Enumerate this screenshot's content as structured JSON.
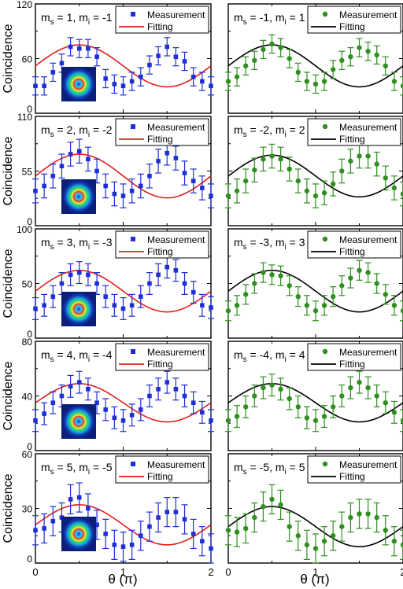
{
  "figure": {
    "ylabel": "Coincidence",
    "xlabel": "θ (π)",
    "legend_measurement": "Measurement",
    "legend_fitting": "Fitting",
    "x_ticks": [
      "0",
      "1",
      "2"
    ],
    "colors": {
      "left_marker": "#1f2fd6",
      "left_errorbar": "#1f2fd6",
      "left_fit": "#e0201b",
      "right_marker": "#2f8f1f",
      "right_errorbar": "#2f8f1f",
      "right_fit": "#000000"
    },
    "inset_beam": "ring-mode intensity image (blue background, green/red/yellow concentric rings)"
  },
  "chart_data": [
    {
      "type": "scatter",
      "panel": "left",
      "row": 1,
      "label_ms": "m",
      "label_text_a": "s",
      "label_eq_a": " = 1, m",
      "label_text_b": "i",
      "label_eq_b": " = -1",
      "ylim": [
        0,
        120
      ],
      "yticks": [
        "0",
        "60",
        "120"
      ],
      "xlim": [
        0,
        2
      ],
      "x": [
        0,
        0.1,
        0.2,
        0.3,
        0.4,
        0.5,
        0.6,
        0.7,
        0.8,
        0.9,
        1.0,
        1.1,
        1.2,
        1.3,
        1.4,
        1.5,
        1.6,
        1.7,
        1.8,
        1.9,
        2.0
      ],
      "y": [
        30,
        30,
        45,
        55,
        73,
        71,
        71,
        62,
        38,
        32,
        30,
        35,
        40,
        53,
        63,
        73,
        62,
        57,
        40,
        35,
        30
      ],
      "err": 10,
      "fit": {
        "offset": 52,
        "amp": 23,
        "phase": 0.5
      }
    },
    {
      "type": "scatter",
      "panel": "right",
      "row": 1,
      "label_ms": "m",
      "label_text_a": "s",
      "label_eq_a": " = -1, m",
      "label_text_b": "i",
      "label_eq_b": " = 1",
      "ylim": [
        0,
        120
      ],
      "yticks": [],
      "xlim": [
        0,
        2
      ],
      "x": [
        0,
        0.1,
        0.2,
        0.3,
        0.4,
        0.5,
        0.6,
        0.7,
        0.8,
        0.9,
        1.0,
        1.1,
        1.2,
        1.3,
        1.4,
        1.5,
        1.6,
        1.7,
        1.8,
        1.9,
        2.0
      ],
      "y": [
        35,
        40,
        52,
        58,
        70,
        76,
        72,
        60,
        45,
        35,
        32,
        35,
        48,
        58,
        62,
        72,
        68,
        64,
        52,
        35,
        30
      ],
      "err": 10,
      "fit": {
        "offset": 52,
        "amp": 23,
        "phase": 0.5
      }
    },
    {
      "type": "scatter",
      "panel": "left",
      "row": 2,
      "label_ms": "m",
      "label_text_a": "s",
      "label_eq_a": " = 2, m",
      "label_text_b": "i",
      "label_eq_b": " = -2",
      "ylim": [
        0,
        110
      ],
      "yticks": [
        "0",
        "55",
        "110"
      ],
      "xlim": [
        0,
        2
      ],
      "x": [
        0,
        0.1,
        0.2,
        0.3,
        0.4,
        0.5,
        0.6,
        0.7,
        0.8,
        0.9,
        1.0,
        1.1,
        1.2,
        1.3,
        1.4,
        1.5,
        1.6,
        1.7,
        1.8,
        1.9,
        2.0
      ],
      "y": [
        35,
        40,
        50,
        60,
        72,
        75,
        67,
        55,
        40,
        32,
        30,
        35,
        40,
        50,
        65,
        73,
        68,
        53,
        45,
        38,
        30
      ],
      "err": 12,
      "fit": {
        "offset": 50,
        "amp": 22,
        "phase": 0.5
      }
    },
    {
      "type": "scatter",
      "panel": "right",
      "row": 2,
      "label_ms": "m",
      "label_text_a": "s",
      "label_eq_a": " = -2, m",
      "label_text_b": "i",
      "label_eq_b": " = 2",
      "ylim": [
        0,
        110
      ],
      "yticks": [],
      "xlim": [
        0,
        2
      ],
      "x": [
        0,
        0.1,
        0.2,
        0.3,
        0.4,
        0.5,
        0.6,
        0.7,
        0.8,
        0.9,
        1.0,
        1.1,
        1.2,
        1.3,
        1.4,
        1.5,
        1.6,
        1.7,
        1.8,
        1.9,
        2.0
      ],
      "y": [
        30,
        35,
        45,
        56,
        67,
        70,
        67,
        57,
        45,
        35,
        30,
        33,
        42,
        55,
        65,
        70,
        70,
        62,
        48,
        38,
        32
      ],
      "err": 12,
      "fit": {
        "offset": 50,
        "amp": 21,
        "phase": 0.5
      }
    },
    {
      "type": "scatter",
      "panel": "left",
      "row": 3,
      "label_ms": "m",
      "label_text_a": "s",
      "label_eq_a": " = 3, m",
      "label_text_b": "i",
      "label_eq_b": " = -3",
      "ylim": [
        0,
        100
      ],
      "yticks": [
        "0",
        "50",
        "100"
      ],
      "xlim": [
        0,
        2
      ],
      "x": [
        0,
        0.1,
        0.2,
        0.3,
        0.4,
        0.5,
        0.6,
        0.7,
        0.8,
        0.9,
        1.0,
        1.1,
        1.2,
        1.3,
        1.4,
        1.5,
        1.6,
        1.7,
        1.8,
        1.9,
        2.0
      ],
      "y": [
        27,
        30,
        38,
        50,
        58,
        60,
        58,
        50,
        38,
        30,
        27,
        30,
        38,
        50,
        58,
        65,
        62,
        50,
        42,
        30,
        28
      ],
      "err": 10,
      "fit": {
        "offset": 43,
        "amp": 19,
        "phase": 0.5
      }
    },
    {
      "type": "scatter",
      "panel": "right",
      "row": 3,
      "label_ms": "m",
      "label_text_a": "s",
      "label_eq_a": " = -3, m",
      "label_text_b": "i",
      "label_eq_b": " = 3",
      "ylim": [
        0,
        100
      ],
      "yticks": [],
      "xlim": [
        0,
        2
      ],
      "x": [
        0,
        0.1,
        0.2,
        0.3,
        0.4,
        0.5,
        0.6,
        0.7,
        0.8,
        0.9,
        1.0,
        1.1,
        1.2,
        1.3,
        1.4,
        1.5,
        1.6,
        1.7,
        1.8,
        1.9,
        2.0
      ],
      "y": [
        25,
        30,
        40,
        50,
        60,
        58,
        57,
        48,
        38,
        30,
        25,
        30,
        38,
        48,
        55,
        62,
        60,
        50,
        40,
        30,
        25
      ],
      "err": 9,
      "fit": {
        "offset": 43,
        "amp": 19,
        "phase": 0.5
      }
    },
    {
      "type": "scatter",
      "panel": "left",
      "row": 4,
      "label_ms": "m",
      "label_text_a": "s",
      "label_eq_a": " = 4, m",
      "label_text_b": "i",
      "label_eq_b": " = -4",
      "ylim": [
        0,
        80
      ],
      "yticks": [
        "0",
        "40",
        "80"
      ],
      "xlim": [
        0,
        2
      ],
      "x": [
        0,
        0.1,
        0.2,
        0.3,
        0.4,
        0.5,
        0.6,
        0.7,
        0.8,
        0.9,
        1.0,
        1.1,
        1.2,
        1.3,
        1.4,
        1.5,
        1.6,
        1.7,
        1.8,
        1.9,
        2.0
      ],
      "y": [
        22,
        27,
        35,
        40,
        47,
        50,
        45,
        35,
        30,
        24,
        22,
        26,
        30,
        40,
        45,
        50,
        45,
        40,
        35,
        28,
        22
      ],
      "err": 8,
      "fit": {
        "offset": 35,
        "amp": 14,
        "phase": 0.5
      }
    },
    {
      "type": "scatter",
      "panel": "right",
      "row": 4,
      "label_ms": "m",
      "label_text_a": "s",
      "label_eq_a": " = -4, m",
      "label_text_b": "i",
      "label_eq_b": " = 4",
      "ylim": [
        0,
        80
      ],
      "yticks": [],
      "xlim": [
        0,
        2
      ],
      "x": [
        0,
        0.1,
        0.2,
        0.3,
        0.4,
        0.5,
        0.6,
        0.7,
        0.8,
        0.9,
        1.0,
        1.1,
        1.2,
        1.3,
        1.4,
        1.5,
        1.6,
        1.7,
        1.8,
        1.9,
        2.0
      ],
      "y": [
        22,
        25,
        32,
        40,
        46,
        48,
        45,
        38,
        32,
        24,
        22,
        25,
        32,
        40,
        46,
        50,
        46,
        40,
        35,
        28,
        22
      ],
      "err": 8,
      "fit": {
        "offset": 35,
        "amp": 14,
        "phase": 0.5
      }
    },
    {
      "type": "scatter",
      "panel": "left",
      "row": 5,
      "label_ms": "m",
      "label_text_a": "s",
      "label_eq_a": " = 5, m",
      "label_text_b": "i",
      "label_eq_b": " = -5",
      "ylim": [
        0,
        60
      ],
      "yticks": [
        "0",
        "30",
        "60"
      ],
      "xlim": [
        0,
        2
      ],
      "x": [
        0,
        0.1,
        0.2,
        0.3,
        0.4,
        0.5,
        0.6,
        0.7,
        0.8,
        0.9,
        1.0,
        1.1,
        1.2,
        1.3,
        1.4,
        1.5,
        1.6,
        1.7,
        1.8,
        1.9,
        2.0
      ],
      "y": [
        18,
        19,
        23,
        25,
        35,
        36,
        30,
        21,
        16,
        10,
        9,
        10,
        15,
        20,
        25,
        28,
        28,
        24,
        16,
        12,
        8
      ],
      "err": 8,
      "fit": {
        "offset": 21,
        "amp": 11,
        "phase": 0.5
      }
    },
    {
      "type": "scatter",
      "panel": "right",
      "row": 5,
      "label_ms": "m",
      "label_text_a": "s",
      "label_eq_a": " = -5, m",
      "label_text_b": "i",
      "label_eq_b": " = 5",
      "ylim": [
        0,
        60
      ],
      "yticks": [],
      "xlim": [
        0,
        2
      ],
      "x": [
        0,
        0.1,
        0.2,
        0.3,
        0.4,
        0.5,
        0.6,
        0.7,
        0.8,
        0.9,
        1.0,
        1.1,
        1.2,
        1.3,
        1.4,
        1.5,
        1.6,
        1.7,
        1.8,
        1.9,
        2.0
      ],
      "y": [
        18,
        17,
        19,
        25,
        31,
        35,
        32,
        20,
        15,
        10,
        8,
        12,
        15,
        20,
        25,
        27,
        27,
        25,
        18,
        12,
        10
      ],
      "err": 8,
      "fit": {
        "offset": 20,
        "amp": 11,
        "phase": 0.5
      }
    }
  ]
}
